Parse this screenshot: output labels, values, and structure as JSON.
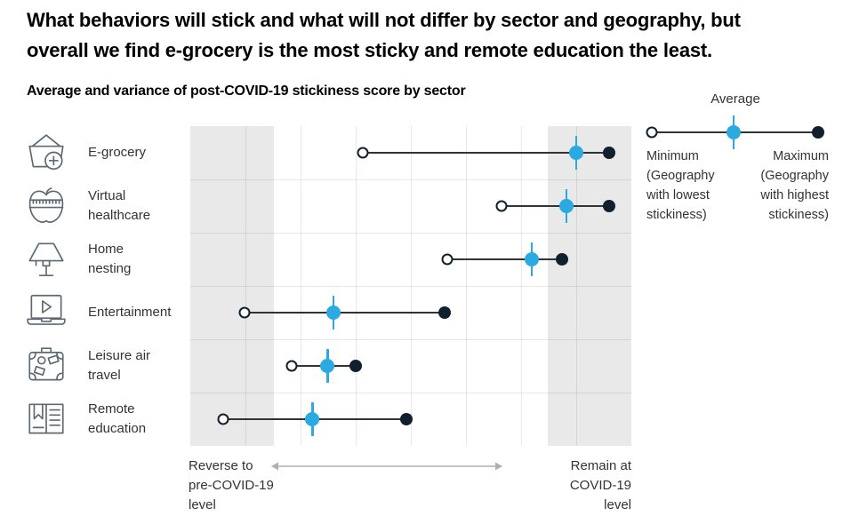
{
  "title": {
    "line1": "What behaviors will stick and what will not differ by sector and geography, but",
    "line2": "overall we find e-grocery is the most sticky and remote education the least."
  },
  "legend": {
    "average_label": "Average",
    "min_label": "Minimum (Geography with lowest stickiness)",
    "max_label": "Maximum (Geography with highest stickiness)"
  },
  "axis": {
    "left_label": "Reverse to pre-COVID-19 level",
    "right_label": "Remain at COVID-19 level"
  },
  "colors": {
    "average_blue": "#2ba9e1",
    "maximum_navy": "#12202e",
    "connector": "#333333",
    "band_gray": "#e9e9e9",
    "icon_stroke": "#5d6a75",
    "arrow_gray": "#b0b0b0"
  },
  "chart_data": {
    "type": "range-dot",
    "title": "Average and variance of post-COVID-19 stickiness score by sector",
    "categories": [
      "E-grocery",
      "Virtual healthcare",
      "Home nesting",
      "Entertainment",
      "Leisure air travel",
      "Remote education"
    ],
    "category_icons": [
      "shopping-basket-add-icon",
      "apple-measuring-tape-icon",
      "table-lamp-icon",
      "laptop-play-icon",
      "suitcase-stickers-icon",
      "open-book-icon"
    ],
    "series": [
      {
        "name": "Minimum (Geography with lowest stickiness)",
        "values": [
          0.392,
          0.705,
          0.582,
          0.123,
          0.23,
          0.075
        ]
      },
      {
        "name": "Average",
        "values": [
          0.875,
          0.853,
          0.774,
          0.325,
          0.311,
          0.277
        ]
      },
      {
        "name": "Maximum (Geography with highest stickiness)",
        "values": [
          0.949,
          0.949,
          0.842,
          0.576,
          0.374,
          0.489
        ]
      }
    ],
    "xlim": [
      0,
      1
    ],
    "x_axis_note": "0 = Reverse to pre-COVID-19 level, 1 = Remain at COVID-19 level",
    "shaded_x_ranges": [
      [
        0,
        0.19
      ],
      [
        0.81,
        1
      ]
    ],
    "grid": "on",
    "x_grid_divisions": 8,
    "legend_position": "top-right"
  }
}
